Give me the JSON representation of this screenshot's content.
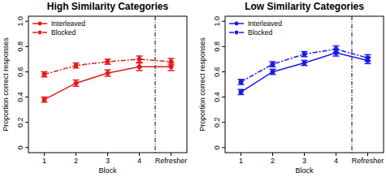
{
  "chart_data": [
    {
      "type": "line",
      "title": "High Similarity Categories",
      "x_label": "Block",
      "y_label": "Proportion correct responses",
      "categories": [
        "1",
        "2",
        "3",
        "4",
        "Refresher"
      ],
      "ylim": [
        -0.04,
        1.04
      ],
      "yticks": [
        0,
        0.2,
        0.4,
        0.6,
        0.8,
        {
          "value": 1,
          "label": "1.0"
        }
      ],
      "legend": "upper left",
      "grid": false,
      "series": [
        {
          "name": "Interleaved",
          "color": "#e41a1c",
          "marker": "circle",
          "line_style": "solid",
          "values": [
            0.38,
            0.51,
            0.59,
            0.64,
            0.64
          ],
          "errors": [
            0.02,
            0.025,
            0.025,
            0.03,
            0.03
          ]
        },
        {
          "name": "Blocked",
          "color": "#e41a1c",
          "marker": "circle",
          "line_style": "dashdot",
          "values": [
            0.58,
            0.65,
            0.68,
            0.7,
            0.68
          ],
          "errors": [
            0.02,
            0.02,
            0.02,
            0.025,
            0.025
          ]
        }
      ]
    },
    {
      "type": "line",
      "title": "Low Similarity Categories",
      "x_label": "Block",
      "y_label": "Proportion correct responses",
      "categories": [
        "1",
        "2",
        "3",
        "4",
        "Refresher"
      ],
      "ylim": [
        -0.04,
        1.04
      ],
      "yticks": [
        0,
        0.2,
        0.4,
        0.6,
        0.8,
        {
          "value": 1,
          "label": "1.0"
        }
      ],
      "legend": "upper left",
      "grid": false,
      "series": [
        {
          "name": "Interleaved",
          "color": "#1a1ae0",
          "marker": "circle",
          "line_style": "solid",
          "values": [
            0.44,
            0.6,
            0.67,
            0.75,
            0.69
          ],
          "errors": [
            0.02,
            0.02,
            0.02,
            0.025,
            0.025
          ]
        },
        {
          "name": "Blocked",
          "color": "#1a1ae0",
          "marker": "circle",
          "line_style": "dashdot",
          "values": [
            0.52,
            0.66,
            0.74,
            0.78,
            0.71
          ],
          "errors": [
            0.02,
            0.02,
            0.02,
            0.025,
            0.025
          ]
        }
      ]
    }
  ]
}
